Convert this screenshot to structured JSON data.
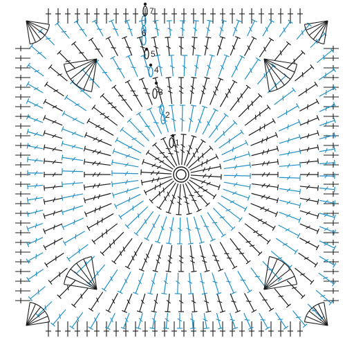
{
  "diagram": {
    "colors": {
      "black_rounds": "#1a1a1a",
      "blue_rounds": "#1f8fc8",
      "marker_gray": "#9a9a9a"
    },
    "stitch_symbols": [
      "magic-ring",
      "chain-stitch",
      "single-crochet",
      "half-double-crochet",
      "double-crochet",
      "treble-crochet"
    ],
    "round_labels": [
      {
        "id": "r1",
        "text": "1"
      },
      {
        "id": "r2",
        "text": "2"
      },
      {
        "id": "r3",
        "text": "3"
      },
      {
        "id": "r4",
        "text": "4"
      },
      {
        "id": "r5",
        "text": "5"
      },
      {
        "id": "r6",
        "text": "6"
      },
      {
        "id": "r7",
        "text": "7"
      }
    ]
  }
}
